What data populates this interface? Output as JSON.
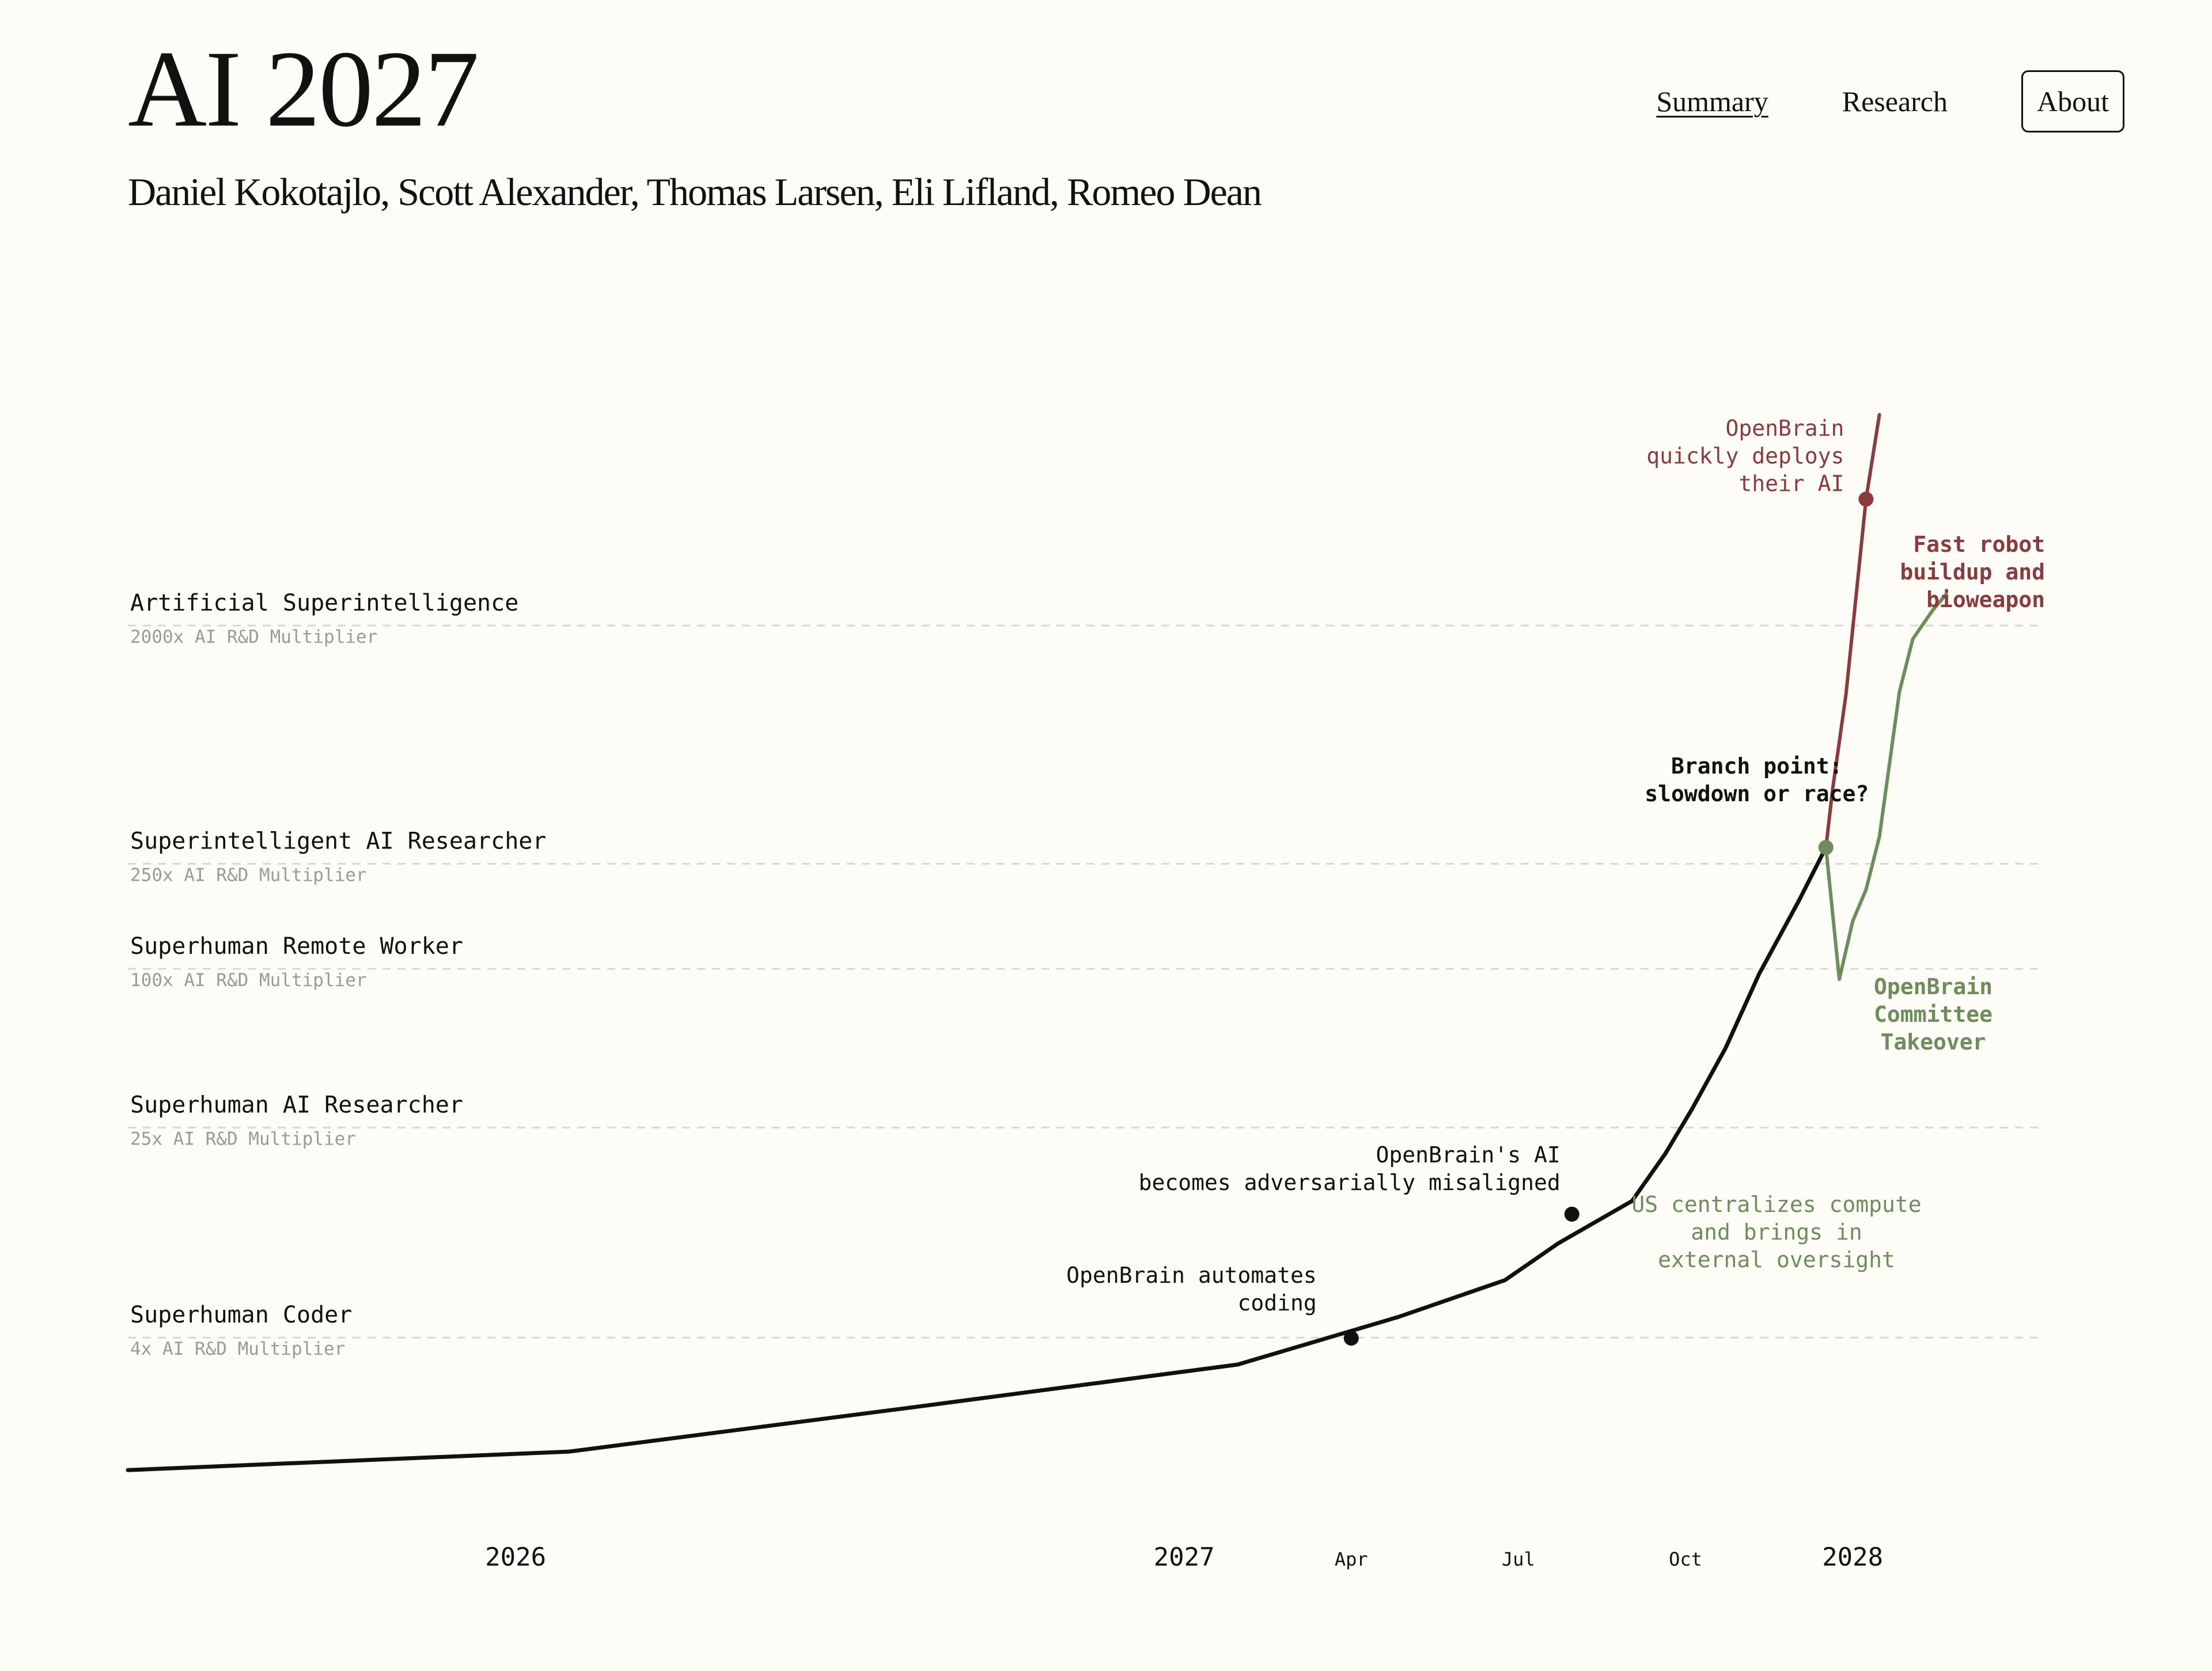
{
  "header": {
    "title": "AI 2027",
    "authors": "Daniel Kokotajlo, Scott Alexander, Thomas Larsen, Eli Lifland, Romeo Dean"
  },
  "nav": {
    "items": [
      {
        "label": "Summary",
        "active": true
      },
      {
        "label": "Research",
        "active": false
      },
      {
        "label": "About",
        "active": false
      }
    ]
  },
  "colors": {
    "background": "#fdfcf7",
    "main_line": "#111111",
    "race": "#8b3a3e",
    "slowdown": "#6b8e5a",
    "milestone_sub": "#9a9a9a",
    "gridline": "#d8d8d2"
  },
  "chart_data": {
    "type": "line",
    "title": "",
    "x_unit": "years since Jan 2026 (decimal)",
    "y_unit": "log10(AI R&D progress multiplier)",
    "xlim": [
      -0.58,
      2.41
    ],
    "ylim": [
      0,
      4.1
    ],
    "x_ticks": [
      {
        "label": "2026",
        "x": 0.0,
        "major": true
      },
      {
        "label": "2027",
        "x": 1.0,
        "major": true
      },
      {
        "label": "Apr",
        "x": 1.25,
        "major": false
      },
      {
        "label": "Jul",
        "x": 1.5,
        "major": false
      },
      {
        "label": "Oct",
        "x": 1.75,
        "major": false
      },
      {
        "label": "2028",
        "x": 2.0,
        "major": true
      }
    ],
    "milestones": [
      {
        "name": "Superhuman Coder",
        "sub": "4x AI R&D Multiplier",
        "multiplier": 4
      },
      {
        "name": "Superhuman AI Researcher",
        "sub": "25x AI R&D Multiplier",
        "multiplier": 25
      },
      {
        "name": "Superhuman Remote Worker",
        "sub": "100x AI R&D Multiplier",
        "multiplier": 100
      },
      {
        "name": "Superintelligent AI Researcher",
        "sub": "250x AI R&D Multiplier",
        "multiplier": 250
      },
      {
        "name": "Artificial Superintelligence",
        "sub": "2000x AI R&D Multiplier",
        "multiplier": 2000
      }
    ],
    "series": [
      {
        "name": "main",
        "color_key": "main_line",
        "points": [
          [
            -0.58,
            0.1
          ],
          [
            0.08,
            0.17
          ],
          [
            0.6,
            0.34
          ],
          [
            1.08,
            0.5
          ],
          [
            1.32,
            0.68
          ],
          [
            1.48,
            0.82
          ],
          [
            1.56,
            0.96
          ],
          [
            1.67,
            1.12
          ],
          [
            1.72,
            1.3
          ],
          [
            1.76,
            1.47
          ],
          [
            1.81,
            1.7
          ],
          [
            1.86,
            1.98
          ],
          [
            1.92,
            2.26
          ],
          [
            1.96,
            2.46
          ]
        ]
      },
      {
        "name": "race",
        "color_key": "race",
        "points": [
          [
            1.96,
            2.46
          ],
          [
            1.97,
            2.68
          ],
          [
            1.99,
            3.04
          ],
          [
            2.02,
            3.78
          ],
          [
            2.04,
            4.1
          ]
        ]
      },
      {
        "name": "slowdown",
        "color_key": "slowdown",
        "points": [
          [
            1.96,
            2.46
          ],
          [
            1.98,
            1.96
          ],
          [
            2.0,
            2.18
          ],
          [
            2.02,
            2.3
          ],
          [
            2.04,
            2.5
          ],
          [
            2.07,
            3.05
          ],
          [
            2.09,
            3.25
          ],
          [
            2.12,
            3.36
          ],
          [
            2.14,
            3.42
          ]
        ]
      }
    ],
    "events": [
      {
        "x": 1.25,
        "y": 0.6,
        "lines": [
          "OpenBrain automates",
          "coding"
        ],
        "color_key": "main_line",
        "bold": false
      },
      {
        "x": 1.58,
        "y": 1.07,
        "lines": [
          "OpenBrain's AI",
          "becomes adversarially misaligned"
        ],
        "color_key": "main_line",
        "bold": false
      },
      {
        "x": 1.96,
        "y": 2.46,
        "lines": [
          "Branch point:",
          "slowdown or race?"
        ],
        "color_key": "slowdown",
        "bold": true
      },
      {
        "x": 2.02,
        "y": 3.78,
        "lines": [
          "OpenBrain",
          "quickly deploys",
          "their AI"
        ],
        "color_key": "race",
        "bold": false
      }
    ],
    "annotations": [
      {
        "lines": [
          "Fast robot",
          "buildup and",
          "bioweapon"
        ],
        "color_key": "race",
        "bold": true
      },
      {
        "lines": [
          "OpenBrain",
          "Committee",
          "Takeover"
        ],
        "color_key": "slowdown",
        "bold": true
      },
      {
        "lines": [
          "US centralizes compute",
          "and brings in",
          "external oversight"
        ],
        "color_key": "slowdown",
        "bold": false
      }
    ]
  }
}
